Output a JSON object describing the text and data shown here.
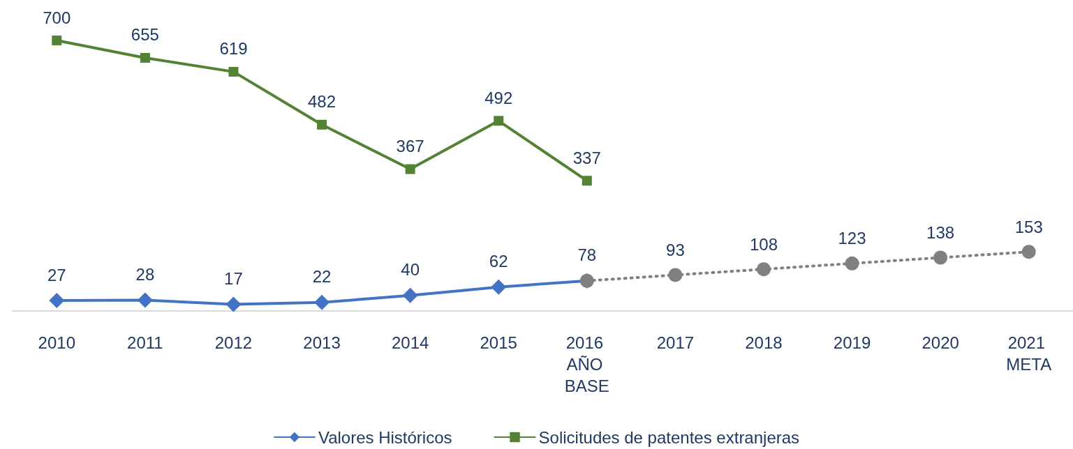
{
  "chart_data": {
    "type": "line",
    "categories": [
      "2010",
      "2011",
      "2012",
      "2013",
      "2014",
      "2015",
      "2016 AÑO BASE",
      "2017",
      "2018",
      "2019",
      "2020",
      "2021 META"
    ],
    "series": [
      {
        "name": "Valores Históricos",
        "color": "#4472c4",
        "marker": "diamond",
        "line_style": "solid",
        "values": [
          27,
          28,
          17,
          22,
          40,
          62,
          78,
          null,
          null,
          null,
          null,
          null
        ]
      },
      {
        "name": "Solicitudes de patentes extranjeras",
        "color": "#548235",
        "marker": "square",
        "line_style": "solid",
        "values": [
          700,
          655,
          619,
          482,
          367,
          492,
          337,
          null,
          null,
          null,
          null,
          null
        ]
      },
      {
        "color": "#808080",
        "marker": "circle",
        "line_style": "dotted",
        "values": [
          null,
          null,
          null,
          null,
          null,
          null,
          78,
          93,
          108,
          123,
          138,
          153
        ],
        "value_labels": [
          null,
          null,
          null,
          null,
          null,
          null,
          null,
          "93",
          "108",
          "123",
          "138",
          "153"
        ]
      }
    ],
    "data_labels": true,
    "grid": false,
    "legend": "bottom"
  }
}
